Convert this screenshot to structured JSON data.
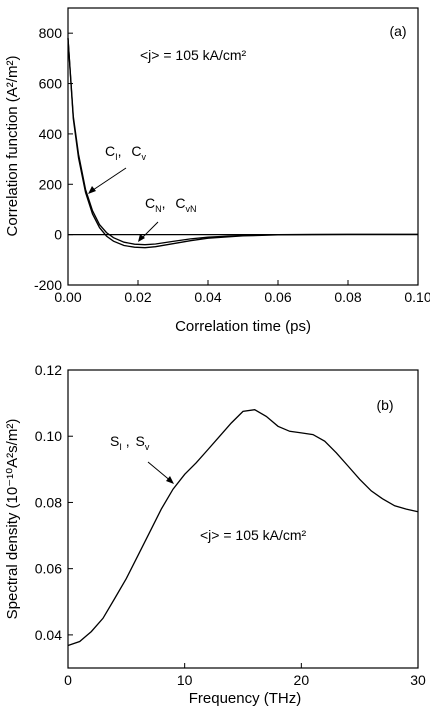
{
  "chart_data": [
    {
      "type": "line",
      "panel_label": "(a)",
      "xlabel": "Correlation time (ps)",
      "ylabel": "Correlation function (A²/m²)",
      "xlim": [
        0.0,
        0.1
      ],
      "ylim": [
        -200,
        900
      ],
      "xticks": [
        "0.00",
        "0.02",
        "0.04",
        "0.06",
        "0.08",
        "0.10"
      ],
      "yticks": [
        "-200",
        "0",
        "200",
        "400",
        "600",
        "800"
      ],
      "annotation": "<j> = 105 kA/cm²",
      "grid": false,
      "series": [
        {
          "name": "C_I, C_v",
          "x": [
            0.0,
            0.0015,
            0.003,
            0.005,
            0.007,
            0.009,
            0.011,
            0.013,
            0.016,
            0.019,
            0.022,
            0.025,
            0.03,
            0.035,
            0.04,
            0.05,
            0.06,
            0.07,
            0.08,
            0.09,
            0.1
          ],
          "y": [
            780,
            470,
            320,
            180,
            95,
            40,
            8,
            -12,
            -30,
            -38,
            -40,
            -37,
            -27,
            -17,
            -10,
            -3,
            0,
            1,
            1,
            1,
            1
          ]
        },
        {
          "name": "C_N, C_vN",
          "x": [
            0.0,
            0.0015,
            0.003,
            0.005,
            0.007,
            0.009,
            0.011,
            0.013,
            0.016,
            0.019,
            0.022,
            0.025,
            0.03,
            0.035,
            0.04,
            0.05,
            0.06,
            0.07,
            0.08,
            0.09,
            0.1
          ],
          "y": [
            780,
            460,
            305,
            168,
            82,
            28,
            -6,
            -26,
            -43,
            -50,
            -52,
            -48,
            -36,
            -24,
            -14,
            -5,
            -1,
            0,
            1,
            1,
            1
          ]
        }
      ],
      "labels": {
        "ci": "C",
        "ci_sub": "I",
        "cv": "C",
        "cv_sub": "v",
        "cn": "C",
        "cn_sub": "N",
        "cvn": "C",
        "cvn_sub": "vN"
      }
    },
    {
      "type": "line",
      "panel_label": "(b)",
      "xlabel": "Frequency  (THz)",
      "ylabel": "Spectral density (10⁻¹⁰A²s/m²)",
      "xlim": [
        0,
        30
      ],
      "ylim": [
        0.03,
        0.12
      ],
      "xticks": [
        "0",
        "10",
        "20",
        "30"
      ],
      "yticks": [
        "0.04",
        "0.06",
        "0.08",
        "0.10",
        "0.12"
      ],
      "annotation": "<j> = 105 kA/cm²",
      "grid": false,
      "series": [
        {
          "name": "S_I, S_v",
          "x": [
            0,
            1,
            2,
            3,
            4,
            5,
            6,
            7,
            8,
            9,
            10,
            11,
            12,
            13,
            14,
            15,
            16,
            17,
            18,
            19,
            20,
            21,
            22,
            23,
            24,
            25,
            26,
            27,
            28,
            29,
            30
          ],
          "y": [
            0.0368,
            0.038,
            0.041,
            0.045,
            0.051,
            0.057,
            0.064,
            0.071,
            0.078,
            0.084,
            0.0885,
            0.092,
            0.096,
            0.1,
            0.104,
            0.1075,
            0.108,
            0.106,
            0.103,
            0.1015,
            0.101,
            0.1005,
            0.0985,
            0.095,
            0.091,
            0.087,
            0.0835,
            0.081,
            0.079,
            0.078,
            0.0772
          ]
        }
      ],
      "labels": {
        "si": "S",
        "si_sub": "I",
        "sv": "S",
        "sv_sub": "v"
      }
    }
  ]
}
